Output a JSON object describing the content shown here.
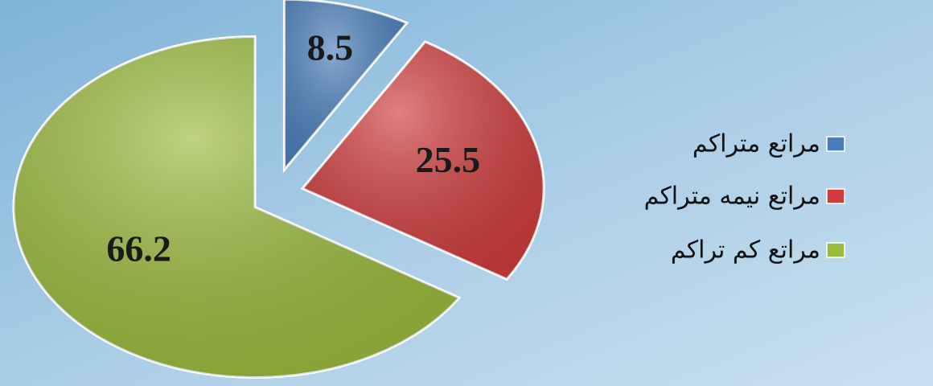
{
  "chart_data": {
    "type": "pie",
    "categories": [
      "مراتع متراکم",
      "مراتع نیمه متراکم",
      "مراتع کم تراکم"
    ],
    "values": [
      8.5,
      25.5,
      66.2
    ],
    "colors": [
      "#4a7ebb",
      "#d03c3c",
      "#9bbb3c"
    ],
    "legend": "right"
  }
}
